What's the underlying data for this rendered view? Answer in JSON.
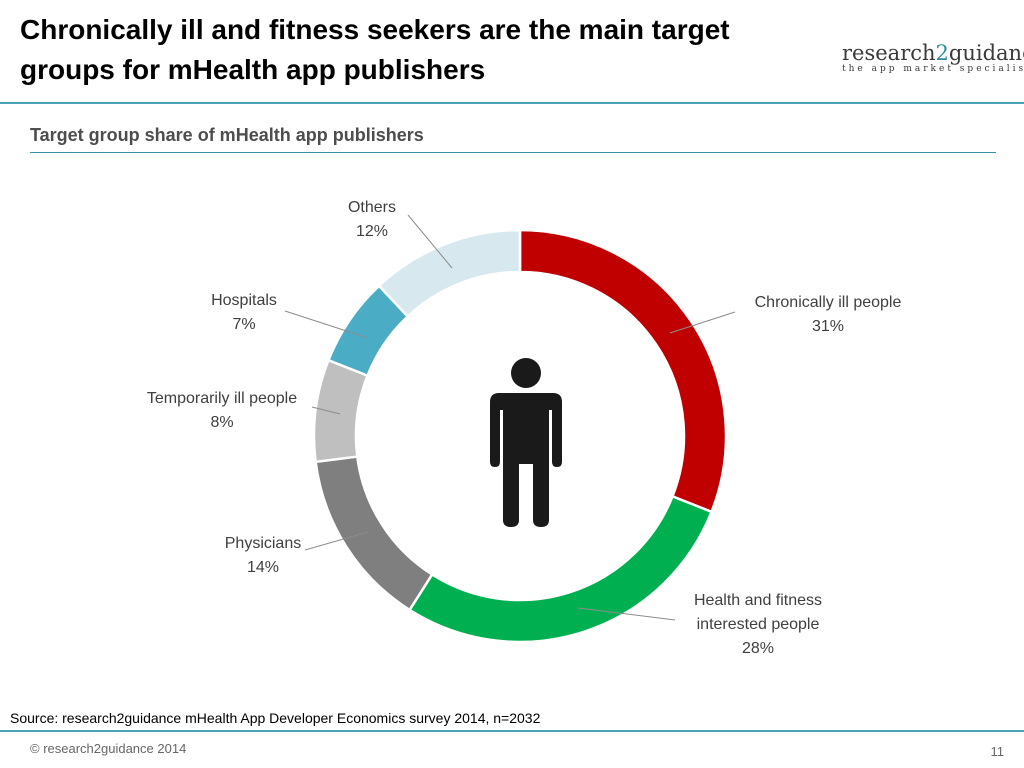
{
  "title": "Chronically ill and fitness seekers are the main target groups for mHealth app publishers",
  "logo": {
    "main_pre": "research",
    "main_two": "2",
    "main_post": "guidance",
    "tagline": "the app market specialists"
  },
  "subtitle": "Target group share of mHealth app publishers",
  "source": "Source: research2guidance mHealth App Developer Economics survey 2014, n=2032",
  "copyright": "© research2guidance 2014",
  "page_number": "11",
  "center_icon": "person-icon",
  "chart_data": {
    "type": "pie",
    "subtype": "donut",
    "title": "Target group share of mHealth app publishers",
    "unit": "%",
    "slices": [
      {
        "label": [
          "Chronically ill people"
        ],
        "value": 31,
        "display": "31%",
        "color": "#c00000"
      },
      {
        "label": [
          "Health and fitness",
          "interested people"
        ],
        "value": 28,
        "display": "28%",
        "color": "#00b050"
      },
      {
        "label": [
          "Physicians"
        ],
        "value": 14,
        "display": "14%",
        "color": "#7f7f7f"
      },
      {
        "label": [
          "Temporarily ill people"
        ],
        "value": 8,
        "display": "8%",
        "color": "#bfbfbf"
      },
      {
        "label": [
          "Hospitals"
        ],
        "value": 7,
        "display": "7%",
        "color": "#4bacc6"
      },
      {
        "label": [
          "Others"
        ],
        "value": 12,
        "display": "12%",
        "color": "#d7e9ee"
      }
    ]
  }
}
